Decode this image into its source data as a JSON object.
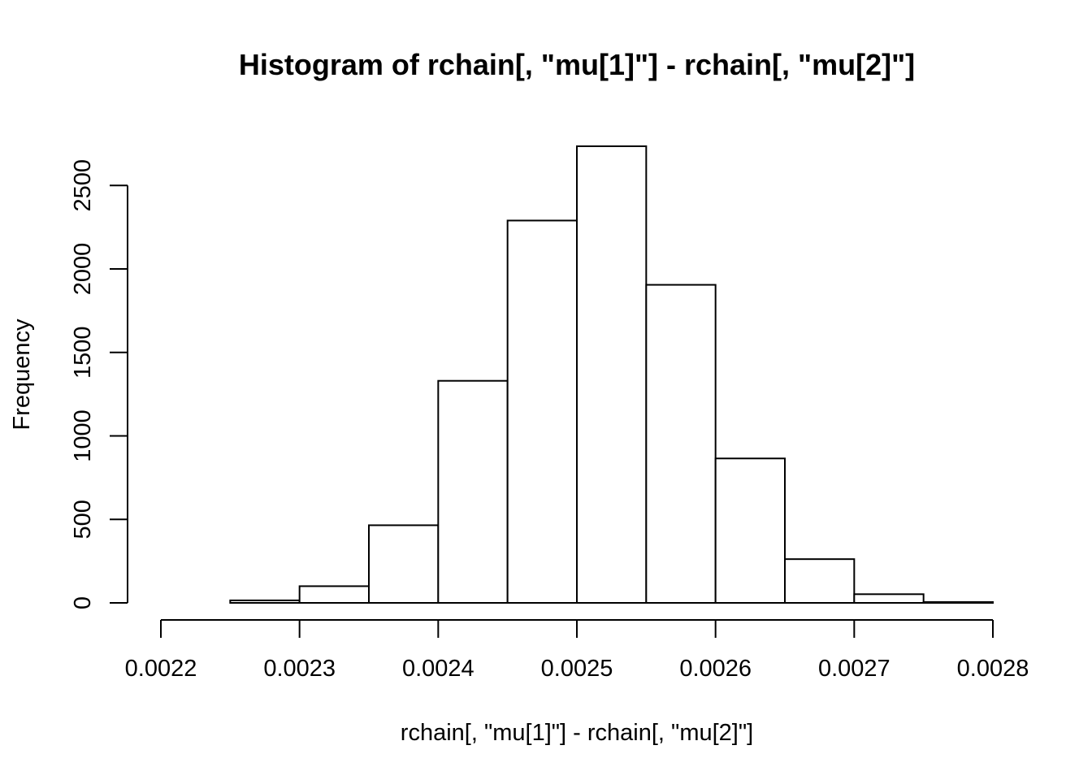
{
  "chart_data": {
    "type": "bar",
    "title": "Histogram of rchain[, \"mu[1]\"] - rchain[, \"mu[2]\"]",
    "xlabel": "rchain[, \"mu[1]\"] - rchain[, \"mu[2]\"]",
    "ylabel": "Frequency",
    "bins": [
      {
        "start": 0.0022,
        "end": 0.00225,
        "value": 0
      },
      {
        "start": 0.00225,
        "end": 0.0023,
        "value": 15
      },
      {
        "start": 0.0023,
        "end": 0.00235,
        "value": 100
      },
      {
        "start": 0.00235,
        "end": 0.0024,
        "value": 465
      },
      {
        "start": 0.0024,
        "end": 0.00245,
        "value": 1330
      },
      {
        "start": 0.00245,
        "end": 0.0025,
        "value": 2290
      },
      {
        "start": 0.0025,
        "end": 0.00255,
        "value": 2735
      },
      {
        "start": 0.00255,
        "end": 0.0026,
        "value": 1905
      },
      {
        "start": 0.0026,
        "end": 0.00265,
        "value": 865
      },
      {
        "start": 0.00265,
        "end": 0.0027,
        "value": 262
      },
      {
        "start": 0.0027,
        "end": 0.00275,
        "value": 52
      },
      {
        "start": 0.00275,
        "end": 0.0028,
        "value": 5
      }
    ],
    "xlim": [
      0.0022,
      0.0028
    ],
    "ylim": [
      0,
      2735
    ],
    "x_ticks": [
      "0.0022",
      "0.0023",
      "0.0024",
      "0.0025",
      "0.0026",
      "0.0027",
      "0.0028"
    ],
    "y_ticks": [
      "0",
      "500",
      "1000",
      "1500",
      "2000",
      "2500"
    ],
    "grid": false
  }
}
